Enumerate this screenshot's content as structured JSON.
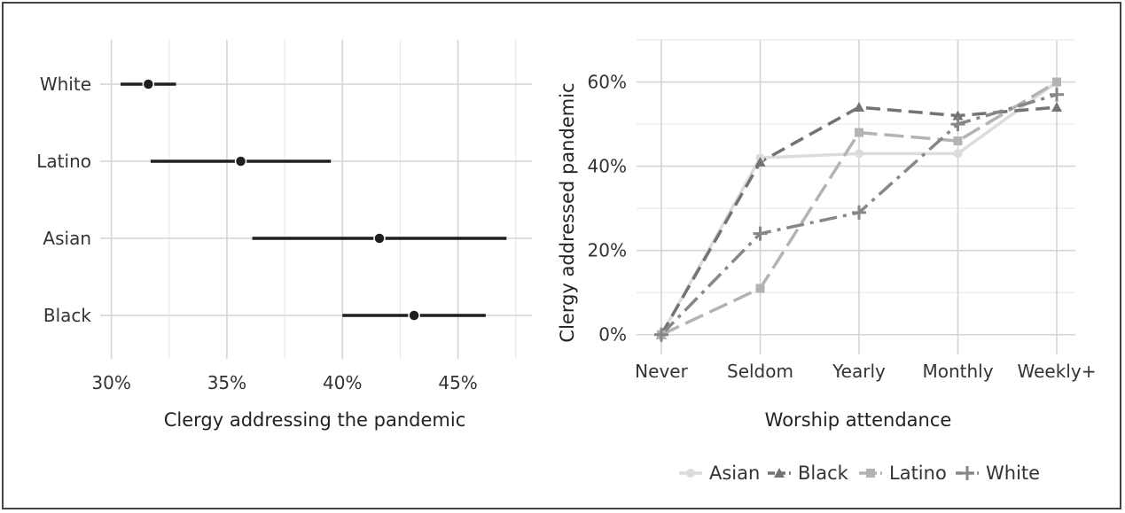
{
  "chart_data": [
    {
      "type": "dot-range",
      "xlabel": "Clergy addressing the pandemic",
      "xlim": [
        29.9,
        48.2
      ],
      "xticks": [
        {
          "value": 30,
          "label": "30%"
        },
        {
          "value": 35,
          "label": "35%"
        },
        {
          "value": 40,
          "label": "40%"
        },
        {
          "value": 45,
          "label": "45%"
        }
      ],
      "grid": true,
      "point_color": "#1f1f1f",
      "categories": [
        "White",
        "Latino",
        "Asian",
        "Black"
      ],
      "points": [
        {
          "group": "White",
          "value": 31.6,
          "low": 30.4,
          "high": 32.8
        },
        {
          "group": "Latino",
          "value": 35.6,
          "low": 31.7,
          "high": 39.5
        },
        {
          "group": "Asian",
          "value": 41.6,
          "low": 36.1,
          "high": 47.1
        },
        {
          "group": "Black",
          "value": 43.1,
          "low": 40.0,
          "high": 46.2
        }
      ]
    },
    {
      "type": "line",
      "xlabel": "Worship attendance",
      "ylabel": "Clergy addressed pandemic",
      "x": [
        "Never",
        "Seldom",
        "Yearly",
        "Monthly",
        "Weekly+"
      ],
      "ylim": [
        -3,
        70
      ],
      "yticks": [
        {
          "value": 0,
          "label": "0%"
        },
        {
          "value": 20,
          "label": "20%"
        },
        {
          "value": 40,
          "label": "40%"
        },
        {
          "value": 60,
          "label": "60%"
        }
      ],
      "grid": true,
      "legend_position": "bottom",
      "series": [
        {
          "name": "Asian",
          "color": "#dcdcdc",
          "dash": "solid",
          "marker": "circle",
          "values": [
            0,
            42,
            43,
            43,
            60
          ]
        },
        {
          "name": "Black",
          "color": "#737373",
          "dash": "dashed",
          "marker": "triangle",
          "values": [
            0,
            41,
            54,
            52,
            54
          ]
        },
        {
          "name": "Latino",
          "color": "#b3b3b3",
          "dash": "longdash",
          "marker": "square",
          "values": [
            0,
            11,
            48,
            46,
            60
          ]
        },
        {
          "name": "White",
          "color": "#878787",
          "dash": "dashdot",
          "marker": "plus",
          "values": [
            0,
            24,
            29,
            50,
            57
          ]
        }
      ]
    }
  ]
}
